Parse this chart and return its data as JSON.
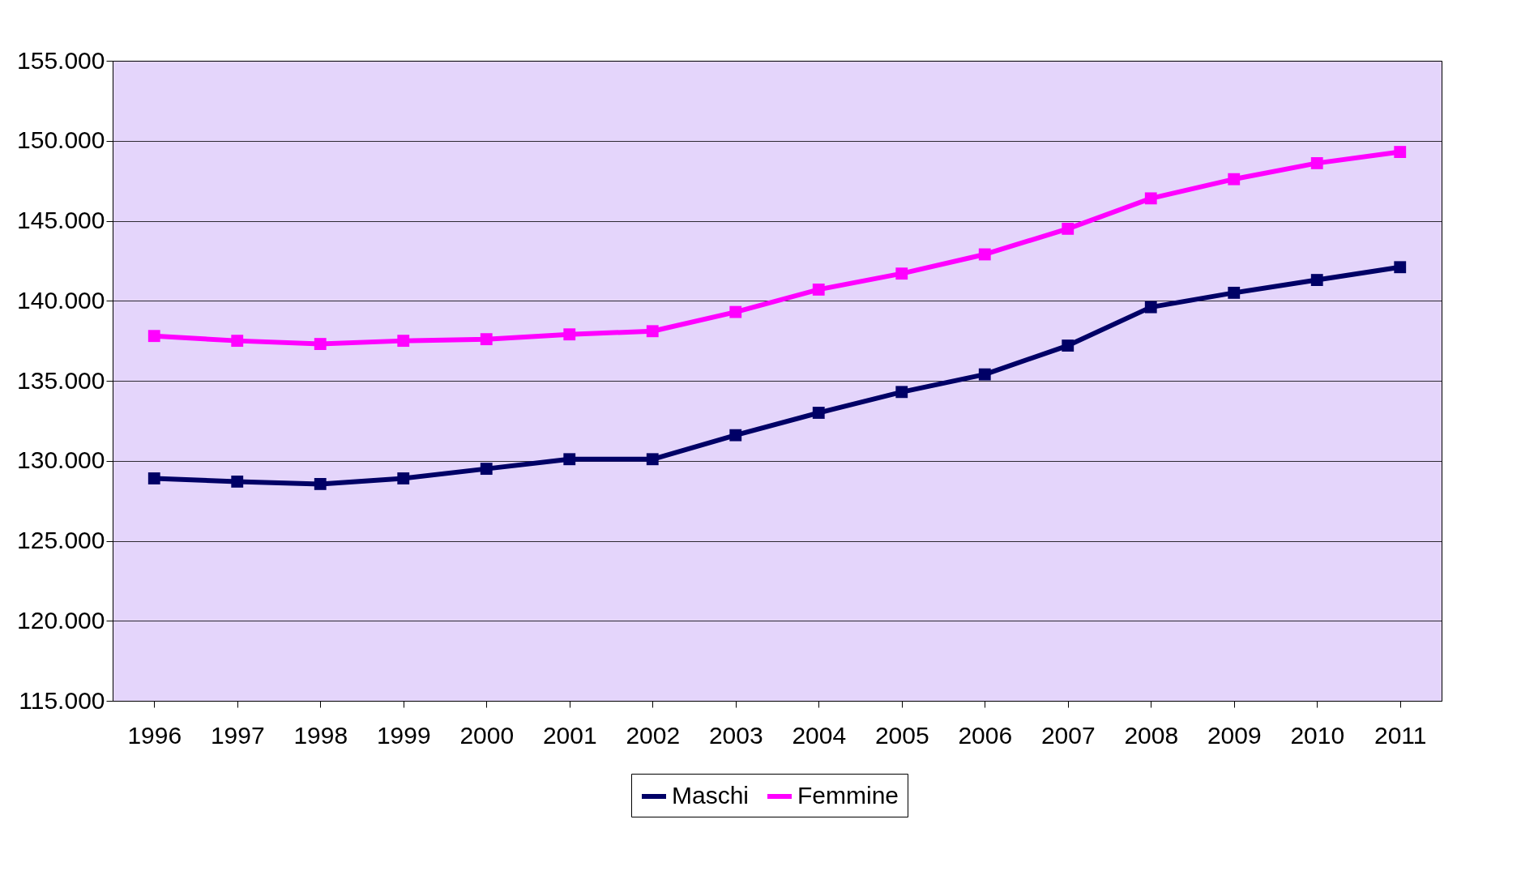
{
  "chart_data": {
    "type": "line",
    "categories": [
      "1996",
      "1997",
      "1998",
      "1999",
      "2000",
      "2001",
      "2002",
      "2003",
      "2004",
      "2005",
      "2006",
      "2007",
      "2008",
      "2009",
      "2010",
      "2011"
    ],
    "series": [
      {
        "name": "Maschi",
        "color": "#000066",
        "values": [
          128900,
          128700,
          128550,
          128900,
          129500,
          130100,
          130100,
          131600,
          133000,
          134300,
          135400,
          137200,
          139600,
          140500,
          141300,
          142100
        ]
      },
      {
        "name": "Femmine",
        "color": "#ff00ff",
        "values": [
          137800,
          137500,
          137300,
          137500,
          137600,
          137900,
          138100,
          139300,
          140700,
          141700,
          142900,
          144500,
          146400,
          147600,
          148600,
          149300
        ]
      }
    ],
    "ylim": [
      115000,
      155000
    ],
    "yticks": [
      {
        "value": 115000,
        "label": "115.000"
      },
      {
        "value": 120000,
        "label": "120.000"
      },
      {
        "value": 125000,
        "label": "125.000"
      },
      {
        "value": 130000,
        "label": "130.000"
      },
      {
        "value": 135000,
        "label": "135.000"
      },
      {
        "value": 140000,
        "label": "140.000"
      },
      {
        "value": 145000,
        "label": "145.000"
      },
      {
        "value": 150000,
        "label": "150.000"
      },
      {
        "value": 155000,
        "label": "155.000"
      }
    ],
    "grid": "y",
    "legend": "bottom",
    "marker": "square",
    "line_style": "solid"
  }
}
